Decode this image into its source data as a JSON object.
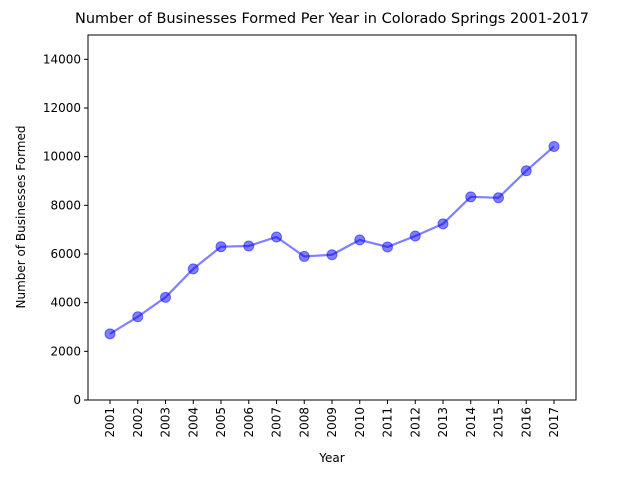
{
  "chart_data": {
    "type": "line",
    "title": "Number of Businesses Formed Per Year in Colorado Springs 2001-2017",
    "xlabel": "Year",
    "ylabel": "Number of Businesses Formed",
    "categories": [
      "2001",
      "2002",
      "2003",
      "2004",
      "2005",
      "2006",
      "2007",
      "2008",
      "2009",
      "2010",
      "2011",
      "2012",
      "2013",
      "2014",
      "2015",
      "2016",
      "2017"
    ],
    "series": [
      {
        "values": [
          2720,
          3420,
          4220,
          5390,
          6300,
          6330,
          6700,
          5900,
          5970,
          6580,
          6290,
          6740,
          7240,
          8350,
          8310,
          9420,
          10420
        ]
      }
    ],
    "ylim": [
      0,
      15000
    ],
    "yticks": [
      0,
      2000,
      4000,
      6000,
      8000,
      10000,
      12000,
      14000
    ],
    "grid": false,
    "line_color": "#0000ff",
    "marker": "circle"
  }
}
